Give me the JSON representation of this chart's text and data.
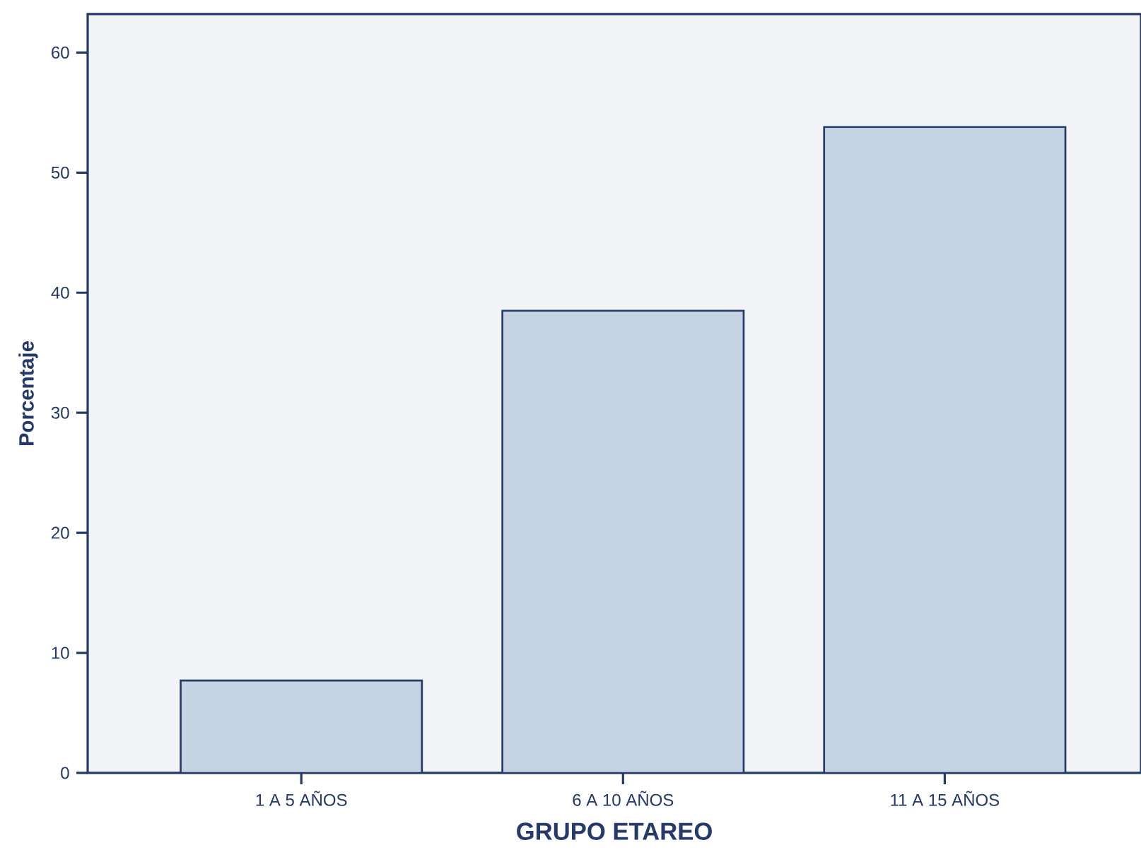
{
  "chart_data": {
    "type": "bar",
    "xlabel": "GRUPO ETAREO",
    "ylabel": "Porcentaje",
    "categories": [
      "1 A 5 AÑOS",
      "6 A 10 AÑOS",
      "11 A 15 AÑOS"
    ],
    "values": [
      7.7,
      38.5,
      53.8
    ],
    "color": "#c6d3e3",
    "ylim": [
      0,
      63.2
    ],
    "yticks": [
      0,
      10,
      20,
      30,
      40,
      50,
      60
    ],
    "grid": false
  }
}
